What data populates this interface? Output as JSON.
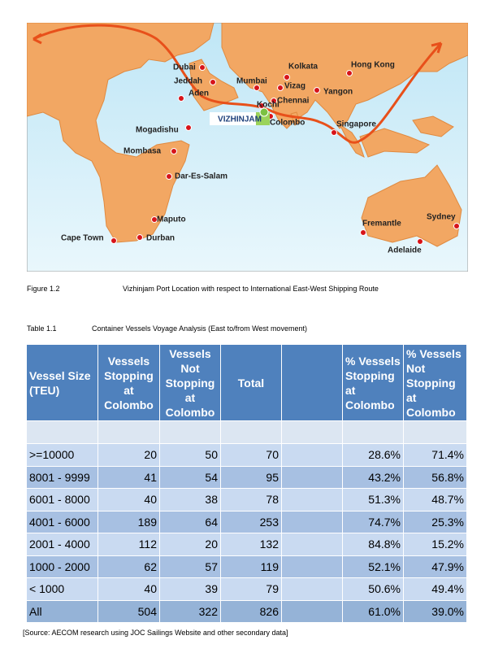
{
  "map": {
    "ports": [
      {
        "label": "Dubai"
      },
      {
        "label": "Jeddah"
      },
      {
        "label": "Aden"
      },
      {
        "label": "Mumbai"
      },
      {
        "label": "Kolkata"
      },
      {
        "label": "Vizag"
      },
      {
        "label": "Chennai"
      },
      {
        "label": "Kochi"
      },
      {
        "label": "Colombo"
      },
      {
        "label": "Yangon"
      },
      {
        "label": "Hong Kong"
      },
      {
        "label": "Singapore"
      },
      {
        "label": "Mogadishu"
      },
      {
        "label": "Mombasa"
      },
      {
        "label": "Dar-Es-Salam"
      },
      {
        "label": "Maputo"
      },
      {
        "label": "Durban"
      },
      {
        "label": "Cape Town"
      },
      {
        "label": "Fremantle"
      },
      {
        "label": "Sydney"
      },
      {
        "label": "Adelaide"
      }
    ],
    "highlight": "VIZHINJAM"
  },
  "figure_caption": {
    "number": "Figure 1.2",
    "text": "Vizhinjam Port Location with respect to International East-West Shipping Route"
  },
  "table_caption": {
    "number": "Table 1.1",
    "text": "Container Vessels Voyage Analysis (East to/from West movement)"
  },
  "table": {
    "header": [
      "Vessel Size (TEU)",
      "Vessels Stopping at Colombo",
      "Vessels Not Stopping at Colombo",
      "Total",
      "% Vessels Stopping at Colombo",
      "% Vessels Not Stopping at Colombo"
    ],
    "rows": [
      [
        ">=10000",
        "20",
        "50",
        "70",
        "28.6%",
        "71.4%"
      ],
      [
        "8001 - 9999",
        "41",
        "54",
        "95",
        "43.2%",
        "56.8%"
      ],
      [
        "6001 - 8000",
        "40",
        "38",
        "78",
        "51.3%",
        "48.7%"
      ],
      [
        "4001 - 6000",
        "189",
        "64",
        "253",
        "74.7%",
        "25.3%"
      ],
      [
        "2001 - 4000",
        "112",
        "20",
        "132",
        "84.8%",
        "15.2%"
      ],
      [
        "1000 - 2000",
        "62",
        "57",
        "119",
        "52.1%",
        "47.9%"
      ],
      [
        "< 1000",
        "40",
        "39",
        "79",
        "50.6%",
        "49.4%"
      ],
      [
        "All",
        "504",
        "322",
        "826",
        "61.0%",
        "39.0%"
      ]
    ]
  },
  "source": "[Source: AECOM research using JOC Sailings Website and other secondary data]"
}
